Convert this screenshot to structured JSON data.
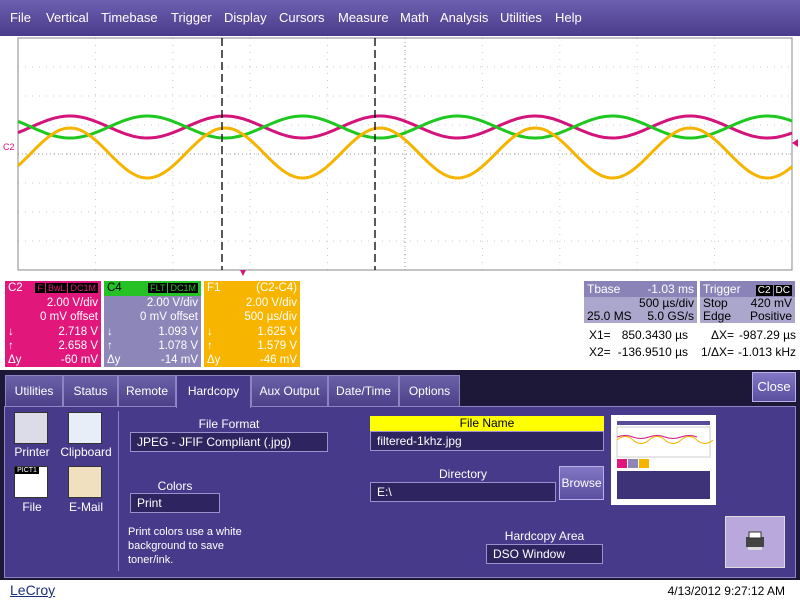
{
  "menu": [
    "File",
    "Vertical",
    "Timebase",
    "Trigger",
    "Display",
    "Cursors",
    "Measure",
    "Math",
    "Analysis",
    "Utilities",
    "Help"
  ],
  "grid_marker": "C2",
  "symbols": {
    "down": "↓",
    "up": "↑",
    "delta": "Δy"
  },
  "channels": [
    {
      "name": "C2",
      "tags": [
        "F",
        "BwL",
        "DC1M"
      ],
      "scale": "2.00 V/div",
      "offset": "0 mV offset",
      "cursor1": "2.718 V",
      "cursor2": "2.658 V",
      "delta": "-60 mV"
    },
    {
      "name": "C4",
      "tags": [
        "FLT",
        "DC1M"
      ],
      "scale": "2.00 V/div",
      "offset": "0 mV offset",
      "cursor1": "1.093 V",
      "cursor2": "1.078 V",
      "delta": "-14 mV"
    },
    {
      "name": "F1",
      "formula": "(C2-C4)",
      "scale": "2.00 V/div",
      "timebase": "500 µs/div",
      "cursor1": "1.625 V",
      "cursor2": "1.579 V",
      "delta": "-46 mV"
    }
  ],
  "timebase": {
    "label": "Tbase",
    "delay": "-1.03 ms",
    "scale": "500 µs/div",
    "samples": "25.0 MS",
    "rate": "5.0 GS/s"
  },
  "trigger": {
    "label": "Trigger",
    "tags": [
      "C2",
      "DC"
    ],
    "mode": "Stop",
    "level": "420 mV",
    "type": "Edge",
    "slope": "Positive"
  },
  "cursors": {
    "x1_label": "X1=",
    "x1": "850.3430 µs",
    "dx_label": "ΔX=",
    "dx": "-987.29 µs",
    "x2_label": "X2=",
    "x2": "-136.9510 µs",
    "inv_label": "1/ΔX=",
    "inv": "-1.013 kHz"
  },
  "tabs": [
    "Utilities",
    "Status",
    "Remote",
    "Hardcopy",
    "Aux Output",
    "Date/Time",
    "Options"
  ],
  "close": "Close",
  "devices": [
    "Printer",
    "Clipboard",
    "File",
    "E-Mail"
  ],
  "file_icon_text": "PICT1",
  "hardcopy": {
    "file_format_label": "File Format",
    "file_format": "JPEG - JFIF Compliant (.jpg)",
    "colors_label": "Colors",
    "colors": "Print",
    "note": "Print colors use a white background to save toner/ink.",
    "file_name_label": "File Name",
    "file_name": "filtered-1khz.jpg",
    "directory_label": "Directory",
    "directory": "E:\\",
    "browse": "Browse",
    "area_label": "Hardcopy Area",
    "area": "DSO Window"
  },
  "status": {
    "brand": "LeCroy",
    "timestamp": "4/13/2012 9:27:12 AM"
  }
}
